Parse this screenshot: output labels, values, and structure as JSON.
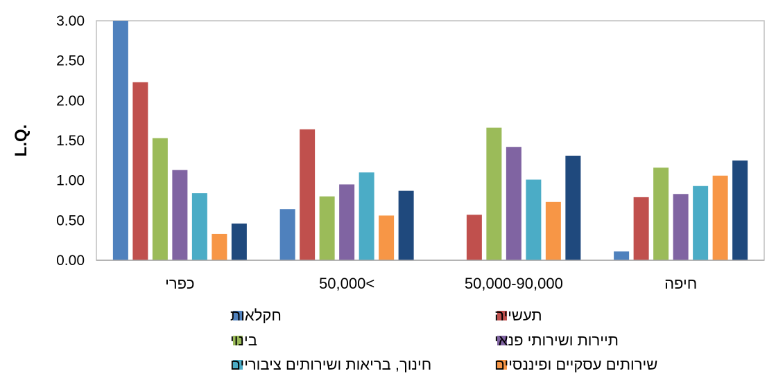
{
  "chart_data": {
    "type": "bar",
    "title": "",
    "xlabel": "",
    "ylabel": "L.Q.",
    "ylim": [
      0,
      3
    ],
    "yticks": [
      "0.00",
      "0.50",
      "1.00",
      "1.50",
      "2.00",
      "2.50",
      "3.00"
    ],
    "grid": false,
    "legend_position": "bottom",
    "categories": [
      "כפרי",
      "50,000<",
      "50,000-90,000",
      "חיפה"
    ],
    "series": [
      {
        "name": "חקלאות",
        "color": "#4F81BD",
        "values": [
          3.0,
          0.64,
          0.0,
          0.11
        ]
      },
      {
        "name": "תעשייה",
        "color": "#C0504D",
        "values": [
          2.23,
          1.64,
          0.57,
          0.79
        ]
      },
      {
        "name": "בינוי",
        "color": "#9BBB59",
        "values": [
          1.53,
          0.8,
          1.66,
          1.16
        ]
      },
      {
        "name": "תיירות ושירותי פנאי",
        "color": "#8064A2",
        "values": [
          1.13,
          0.95,
          1.42,
          0.83
        ]
      },
      {
        "name": "חינוך, בריאות ושירותים ציבוריים",
        "color": "#4BACC6",
        "values": [
          0.84,
          1.1,
          1.01,
          0.93
        ]
      },
      {
        "name": "שירותים עסקיים ופיננסיים",
        "color": "#F79646",
        "values": [
          0.33,
          0.56,
          0.73,
          1.06
        ]
      },
      {
        "name": "",
        "color": "#1F497D",
        "values": [
          0.46,
          0.87,
          1.31,
          1.25
        ]
      }
    ]
  }
}
